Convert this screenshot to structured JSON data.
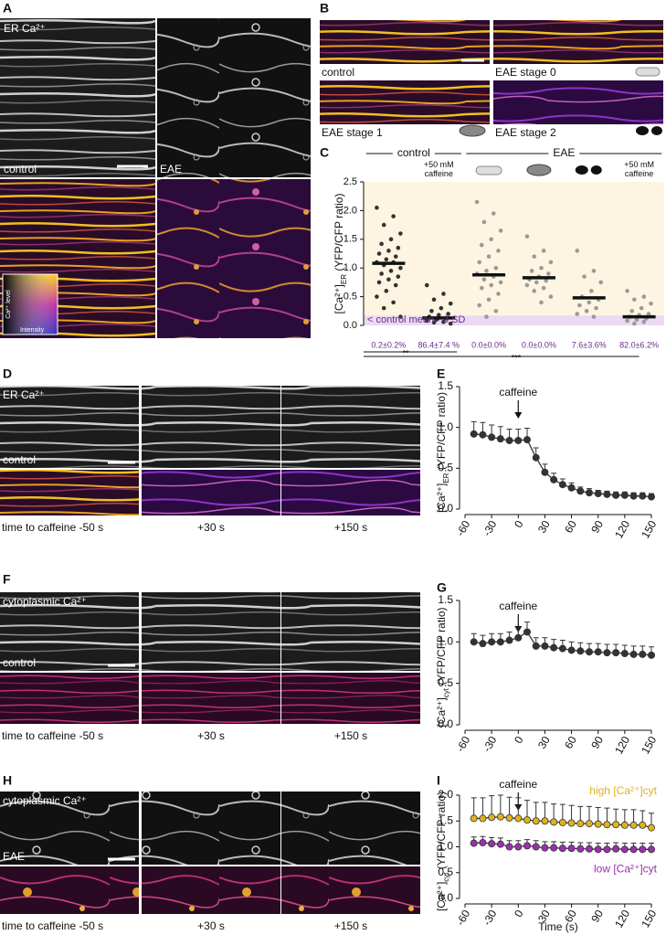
{
  "panels": {
    "A": {
      "label": "A",
      "ca_label": "ER Ca²⁺",
      "left": "control",
      "right": "EAE",
      "legend_y": "Ca²⁺ level",
      "legend_x": "Intensity"
    },
    "B": {
      "label": "B",
      "tiles": [
        "control",
        "EAE stage 0",
        "EAE stage 1",
        "EAE stage 2"
      ]
    },
    "D": {
      "label": "D",
      "ca_label": "ER Ca²⁺",
      "condition": "control",
      "times": [
        "time to caffeine -50 s",
        "+30 s",
        "+150 s"
      ]
    },
    "F": {
      "label": "F",
      "ca_label": "cytoplasmic Ca²⁺",
      "condition": "control",
      "times": [
        "time to caffeine -50 s",
        "+30 s",
        "+150 s"
      ]
    },
    "H": {
      "label": "H",
      "ca_label": "cytoplasmic Ca²⁺",
      "condition": "EAE",
      "times": [
        "time to caffeine -50 s",
        "+30 s",
        "+150 s"
      ]
    }
  },
  "chart_data": [
    {
      "type": "dot",
      "label": "C",
      "groups": [
        "control",
        "EAE"
      ],
      "categories": [
        null,
        "+50 mM caffeine",
        null,
        null,
        null,
        "+50 mM caffeine"
      ],
      "ylabel": [
        "[Ca²⁺]",
        "ER",
        " (YFP/CFP ratio)"
      ],
      "values": [
        1.08,
        0.13,
        0.88,
        0.83,
        0.48,
        0.15
      ],
      "colors": [
        "#333333",
        "#333333",
        "#9a9a9a",
        "#9a9a9a",
        "#9a9a9a",
        "#9a9a9a"
      ],
      "points": [
        [
          2.05,
          1.9,
          1.75,
          1.6,
          1.5,
          1.42,
          1.35,
          1.3,
          1.25,
          1.2,
          1.15,
          1.1,
          1.1,
          1.05,
          1.0,
          0.95,
          0.9,
          0.85,
          0.8,
          0.75,
          0.7,
          0.6,
          0.5,
          0.4,
          0.3,
          0.15
        ],
        [
          0.7,
          0.55,
          0.45,
          0.38,
          0.3,
          0.25,
          0.2,
          0.18,
          0.15,
          0.12,
          0.1,
          0.08,
          0.06,
          0.05,
          0.03
        ],
        [
          2.15,
          1.95,
          1.8,
          1.65,
          1.5,
          1.4,
          1.3,
          1.2,
          1.1,
          1.0,
          0.95,
          0.9,
          0.85,
          0.8,
          0.75,
          0.7,
          0.65,
          0.55,
          0.45,
          0.35,
          0.25,
          0.15
        ],
        [
          1.55,
          1.3,
          1.2,
          1.1,
          1.0,
          0.95,
          0.9,
          0.85,
          0.8,
          0.78,
          0.75,
          0.7,
          0.65,
          0.6,
          0.5,
          0.4
        ],
        [
          1.3,
          0.95,
          0.85,
          0.75,
          0.6,
          0.5,
          0.45,
          0.4,
          0.35,
          0.3,
          0.25,
          0.2,
          0.15
        ],
        [
          0.6,
          0.5,
          0.45,
          0.38,
          0.3,
          0.25,
          0.2,
          0.18,
          0.15,
          0.12,
          0.1,
          0.08,
          0.06,
          0.03
        ]
      ],
      "threshold": 0.17,
      "threshold_label": "< control mean - 3 SD",
      "below_threshold_labels": [
        "0.2±0.2%",
        "86.4±7.4 %",
        "0.0±0.0%",
        "0.0±0.0%",
        "7.6±3.6%",
        "82.0±6.2%"
      ],
      "significance": [
        "**",
        "***"
      ],
      "ylim": [
        0,
        2.5
      ],
      "yticks": [
        {
          "value": 0,
          "label": "0.0"
        },
        0.5,
        {
          "value": 1,
          "label": "1.0"
        },
        1.5,
        {
          "value": 2,
          "label": "2.0"
        },
        2.5
      ]
    },
    {
      "type": "line",
      "label": "E",
      "annotation": "caffeine",
      "ylabel": [
        "[Ca²⁺]",
        "ER",
        " (YFP/CFP ratio)"
      ],
      "x": [
        -50,
        -40,
        -30,
        -20,
        -10,
        0,
        10,
        20,
        30,
        40,
        50,
        60,
        70,
        80,
        90,
        100,
        110,
        120,
        130,
        140,
        150
      ],
      "series": [
        {
          "name": null,
          "color": "#333333",
          "values": [
            0.92,
            0.91,
            0.88,
            0.86,
            0.84,
            0.84,
            0.85,
            0.63,
            0.45,
            0.36,
            0.3,
            0.26,
            0.22,
            0.2,
            0.19,
            0.18,
            0.17,
            0.17,
            0.16,
            0.16,
            0.15
          ],
          "errors": [
            0.15,
            0.15,
            0.15,
            0.15,
            0.14,
            0.14,
            0.14,
            0.12,
            0.1,
            0.08,
            0.07,
            0.06,
            0.05,
            0.05,
            0.04,
            0.04,
            0.04,
            0.04,
            0.04,
            0.04,
            0.04
          ]
        }
      ],
      "xlim": [
        -60,
        150
      ],
      "xticks": [
        -60,
        -30,
        0,
        30,
        60,
        90,
        120,
        150
      ],
      "ylim": [
        0,
        1.5
      ],
      "yticks": [
        {
          "value": 0,
          "label": "0.0"
        },
        0.5,
        {
          "value": 1,
          "label": "1.0"
        },
        1.5
      ]
    },
    {
      "type": "line",
      "label": "G",
      "annotation": "caffeine",
      "ylabel": [
        "[Ca²⁺]",
        "cyt",
        " (YFP/CFP ratio)"
      ],
      "x": [
        -50,
        -40,
        -30,
        -20,
        -10,
        0,
        10,
        20,
        30,
        40,
        50,
        60,
        70,
        80,
        90,
        100,
        110,
        120,
        130,
        140,
        150
      ],
      "series": [
        {
          "name": null,
          "color": "#333333",
          "values": [
            1.0,
            0.98,
            1.0,
            1.0,
            1.02,
            1.05,
            1.12,
            0.95,
            0.95,
            0.93,
            0.92,
            0.9,
            0.89,
            0.88,
            0.88,
            0.87,
            0.87,
            0.86,
            0.85,
            0.85,
            0.84
          ],
          "errors": [
            0.1,
            0.1,
            0.1,
            0.1,
            0.1,
            0.12,
            0.12,
            0.1,
            0.1,
            0.1,
            0.1,
            0.1,
            0.1,
            0.1,
            0.1,
            0.1,
            0.1,
            0.1,
            0.1,
            0.1,
            0.1
          ]
        }
      ],
      "xlim": [
        -60,
        150
      ],
      "xticks": [
        -60,
        -30,
        0,
        30,
        60,
        90,
        120,
        150
      ],
      "ylim": [
        0,
        1.5
      ],
      "yticks": [
        {
          "value": 0,
          "label": "0.0"
        },
        0.5,
        {
          "value": 1,
          "label": "1.0"
        },
        1.5
      ]
    },
    {
      "type": "line",
      "label": "I",
      "annotation": "caffeine",
      "ylabel": [
        "[Ca²⁺]",
        "cyt",
        " (YFP/CFP ratio)"
      ],
      "xlabel": "Time (s)",
      "x": [
        -50,
        -40,
        -30,
        -20,
        -10,
        0,
        10,
        20,
        30,
        40,
        50,
        60,
        70,
        80,
        90,
        100,
        110,
        120,
        130,
        140,
        150
      ],
      "series": [
        {
          "name": "high [Ca²⁺]cyt",
          "color": "#e0b21c",
          "values": [
            1.55,
            1.55,
            1.57,
            1.58,
            1.56,
            1.55,
            1.52,
            1.5,
            1.5,
            1.48,
            1.47,
            1.46,
            1.45,
            1.45,
            1.44,
            1.43,
            1.43,
            1.42,
            1.42,
            1.42,
            1.37
          ],
          "errors": [
            0.4,
            0.4,
            0.42,
            0.42,
            0.4,
            0.4,
            0.38,
            0.36,
            0.36,
            0.35,
            0.35,
            0.34,
            0.33,
            0.33,
            0.32,
            0.32,
            0.3,
            0.3,
            0.3,
            0.28,
            0.28
          ]
        },
        {
          "name": "low [Ca²⁺]cyt",
          "color": "#9b2fae",
          "values": [
            1.07,
            1.08,
            1.06,
            1.05,
            1.0,
            1.0,
            1.02,
            1.0,
            0.98,
            0.98,
            0.97,
            0.97,
            0.96,
            0.96,
            0.95,
            0.95,
            0.96,
            0.95,
            0.95,
            0.95,
            0.95
          ],
          "errors": [
            0.12,
            0.12,
            0.12,
            0.12,
            0.12,
            0.12,
            0.12,
            0.12,
            0.12,
            0.12,
            0.12,
            0.12,
            0.12,
            0.12,
            0.12,
            0.12,
            0.12,
            0.12,
            0.12,
            0.12,
            0.12
          ]
        }
      ],
      "xlim": [
        -60,
        150
      ],
      "xticks": [
        -60,
        -30,
        0,
        30,
        60,
        90,
        120,
        150
      ],
      "ylim": [
        0,
        2
      ],
      "yticks": [
        {
          "value": 0,
          "label": "0.0"
        },
        0.5,
        {
          "value": 1,
          "label": "1.0"
        },
        1.5,
        {
          "value": 2,
          "label": "2.0"
        }
      ]
    }
  ]
}
